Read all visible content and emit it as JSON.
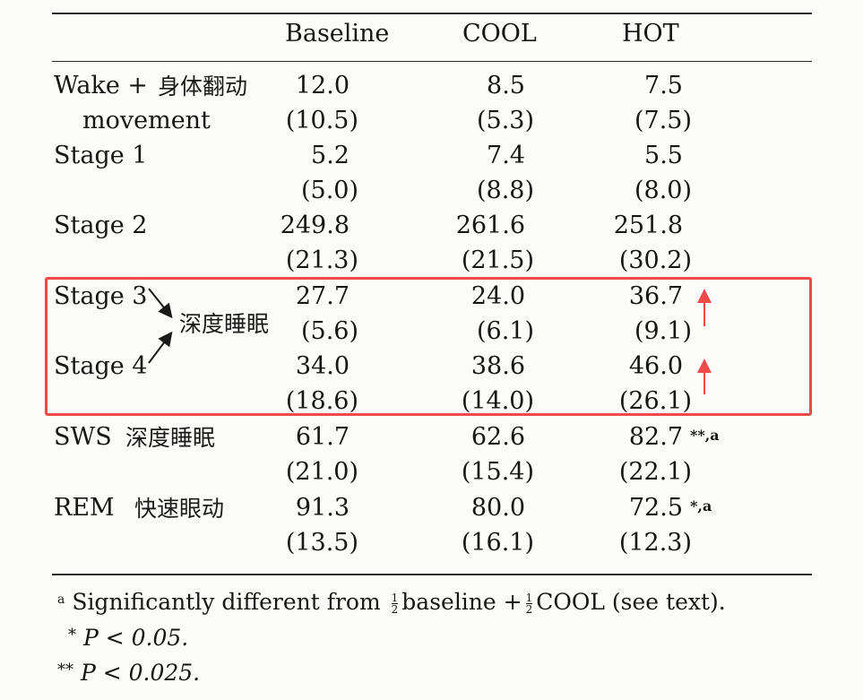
{
  "table": {
    "columns": [
      "",
      "Baseline",
      "COOL",
      "HOT"
    ],
    "rows": [
      {
        "label": "Wake +",
        "label2": "movement",
        "annotation": "身体翻动",
        "values": [
          "12.0",
          "8.5",
          "7.5"
        ],
        "sd": [
          "(10.5)",
          "(5.3)",
          "(7.5)"
        ]
      },
      {
        "label": "Stage 1",
        "values": [
          "5.2",
          "7.4",
          "5.5"
        ],
        "sd": [
          "(5.0)",
          "(8.8)",
          "(8.0)"
        ]
      },
      {
        "label": "Stage 2",
        "values": [
          "249.8",
          "261.6",
          "251.8"
        ],
        "sd": [
          "(21.3)",
          "(21.5)",
          "(30.2)"
        ]
      },
      {
        "label": "Stage 3",
        "values": [
          "27.7",
          "24.0",
          "36.7"
        ],
        "sd": [
          "(5.6)",
          "(6.1)",
          "(9.1)"
        ]
      },
      {
        "label": "Stage 4",
        "values": [
          "34.0",
          "38.6",
          "46.0"
        ],
        "sd": [
          "(18.6)",
          "(14.0)",
          "(26.1)"
        ]
      },
      {
        "label": "SWS",
        "annotation": "深度睡眠",
        "values": [
          "61.7",
          "62.6",
          "82.7"
        ],
        "hot_marker": "**,a",
        "sd": [
          "(21.0)",
          "(15.4)",
          "(22.1)"
        ]
      },
      {
        "label": "REM",
        "annotation": "快速眼动",
        "values": [
          "91.3",
          "80.0",
          "72.5"
        ],
        "hot_marker": "*,a",
        "sd": [
          "(13.5)",
          "(16.1)",
          "(12.3)"
        ]
      }
    ]
  },
  "annotations": {
    "deep_sleep_label": "深度睡眠",
    "highlight_color": "#ee4a4a"
  },
  "footnotes": {
    "a_marker": "a",
    "a_text_before": "Significantly different from",
    "frac_num": "1",
    "frac_den": "2",
    "a_mid": "baseline +",
    "a_text_after": "COOL (see text).",
    "star_marker": "*",
    "star_text": "P < 0.05.",
    "dstar_marker": "**",
    "dstar_text": "P < 0.025."
  }
}
